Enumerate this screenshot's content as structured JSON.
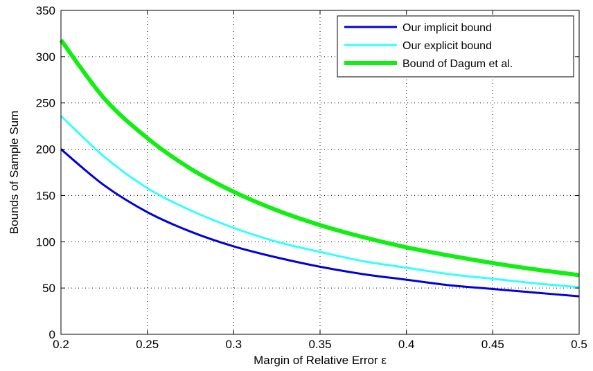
{
  "chart_data": {
    "type": "line",
    "title": "",
    "xlabel": "Margin of Relative Error ε",
    "ylabel": "Bounds of Sample Sum",
    "xlim": [
      0.2,
      0.5
    ],
    "ylim": [
      0,
      350
    ],
    "xticks": [
      0.2,
      0.25,
      0.3,
      0.35,
      0.4,
      0.45,
      0.5
    ],
    "xtick_labels": [
      "0.2",
      "0.25",
      "0.3",
      "0.35",
      "0.4",
      "0.45",
      "0.5"
    ],
    "yticks": [
      0,
      50,
      100,
      150,
      200,
      250,
      300,
      350
    ],
    "ytick_labels": [
      "0",
      "50",
      "100",
      "150",
      "200",
      "250",
      "300",
      "350"
    ],
    "grid": true,
    "legend_position": "top-right",
    "x": [
      0.2,
      0.225,
      0.25,
      0.275,
      0.3,
      0.325,
      0.35,
      0.375,
      0.4,
      0.425,
      0.45,
      0.475,
      0.5
    ],
    "series": [
      {
        "name": "Our implicit bound",
        "color": "#0000dd",
        "line_width": 3,
        "values": [
          200,
          161,
          132,
          111,
          95,
          83,
          73,
          65,
          59,
          53,
          49,
          45,
          41
        ]
      },
      {
        "name": "Our explicit bound",
        "color": "#33ffff",
        "line_width": 3,
        "values": [
          236,
          192,
          158,
          134,
          115,
          100,
          89,
          79,
          72,
          65,
          60,
          55,
          51
        ]
      },
      {
        "name": "Bound of Dagum et al.",
        "color": "#11ee11",
        "line_width": 6,
        "values": [
          318,
          255,
          212,
          179,
          154,
          134,
          118,
          105,
          94,
          85,
          77,
          70,
          64
        ]
      }
    ]
  }
}
